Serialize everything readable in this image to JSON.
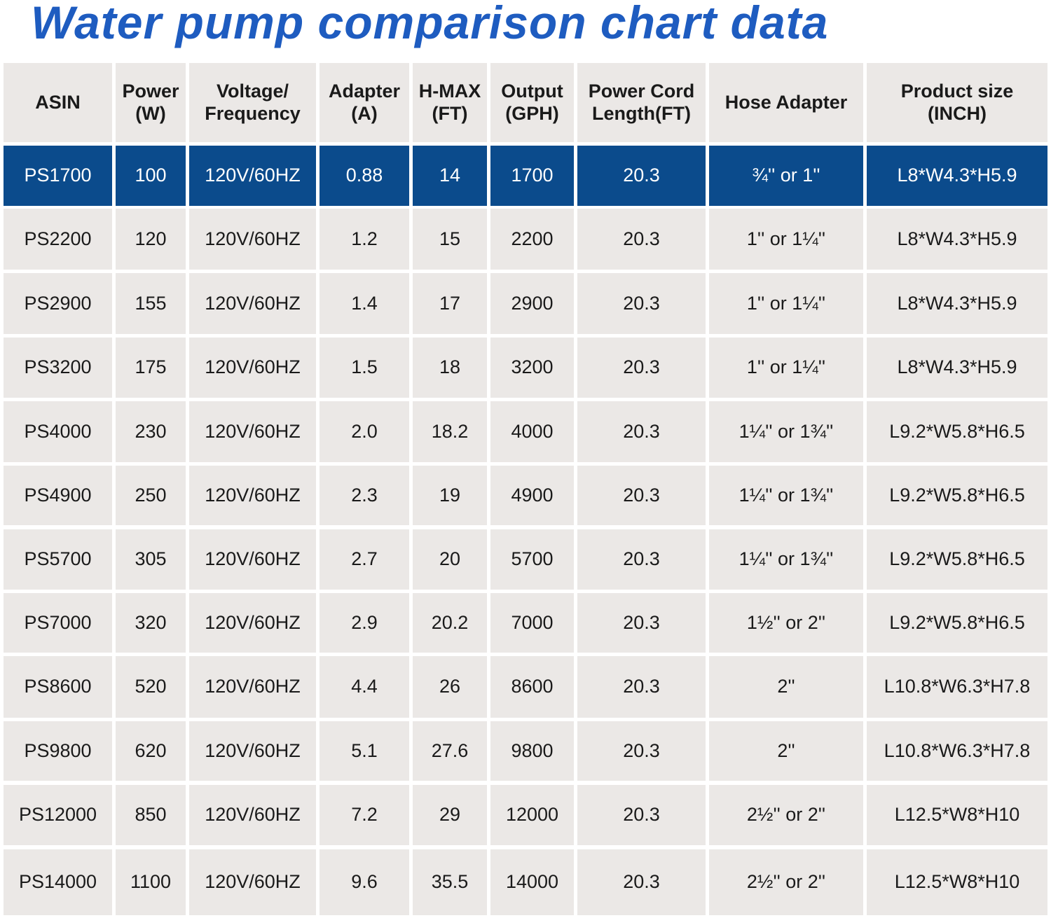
{
  "header": {
    "title": "Water pump comparison chart data"
  },
  "table": {
    "columns": [
      "ASIN",
      "Power\n(W)",
      "Voltage/\nFrequency",
      "Adapter\n(A)",
      "H-MAX\n(FT)",
      "Output\n(GPH)",
      "Power Cord\nLength(FT)",
      "Hose Adapter",
      "Product size\n(INCH)"
    ],
    "rows": [
      [
        "PS1700",
        "100",
        "120V/60HZ",
        "0.88",
        "14",
        "1700",
        "20.3",
        "¾'' or 1''",
        "L8*W4.3*H5.9"
      ],
      [
        "PS2200",
        "120",
        "120V/60HZ",
        "1.2",
        "15",
        "2200",
        "20.3",
        "1'' or 1¼''",
        "L8*W4.3*H5.9"
      ],
      [
        "PS2900",
        "155",
        "120V/60HZ",
        "1.4",
        "17",
        "2900",
        "20.3",
        "1'' or 1¼''",
        "L8*W4.3*H5.9"
      ],
      [
        "PS3200",
        "175",
        "120V/60HZ",
        "1.5",
        "18",
        "3200",
        "20.3",
        "1'' or 1¼''",
        "L8*W4.3*H5.9"
      ],
      [
        "PS4000",
        "230",
        "120V/60HZ",
        "2.0",
        "18.2",
        "4000",
        "20.3",
        "1¼'' or 1¾''",
        "L9.2*W5.8*H6.5"
      ],
      [
        "PS4900",
        "250",
        "120V/60HZ",
        "2.3",
        "19",
        "4900",
        "20.3",
        "1¼'' or 1¾''",
        "L9.2*W5.8*H6.5"
      ],
      [
        "PS5700",
        "305",
        "120V/60HZ",
        "2.7",
        "20",
        "5700",
        "20.3",
        "1¼'' or 1¾''",
        "L9.2*W5.8*H6.5"
      ],
      [
        "PS7000",
        "320",
        "120V/60HZ",
        "2.9",
        "20.2",
        "7000",
        "20.3",
        "1½'' or 2''",
        "L9.2*W5.8*H6.5"
      ],
      [
        "PS8600",
        "520",
        "120V/60HZ",
        "4.4",
        "26",
        "8600",
        "20.3",
        "2''",
        "L10.8*W6.3*H7.8"
      ],
      [
        "PS9800",
        "620",
        "120V/60HZ",
        "5.1",
        "27.6",
        "9800",
        "20.3",
        "2''",
        "L10.8*W6.3*H7.8"
      ],
      [
        "PS12000",
        "850",
        "120V/60HZ",
        "7.2",
        "29",
        "12000",
        "20.3",
        "2½'' or 2''",
        "L12.5*W8*H10"
      ],
      [
        "PS14000",
        "1100",
        "120V/60HZ",
        "9.6",
        "35.5",
        "14000",
        "20.3",
        "2½'' or 2''",
        "L12.5*W8*H10"
      ]
    ]
  }
}
